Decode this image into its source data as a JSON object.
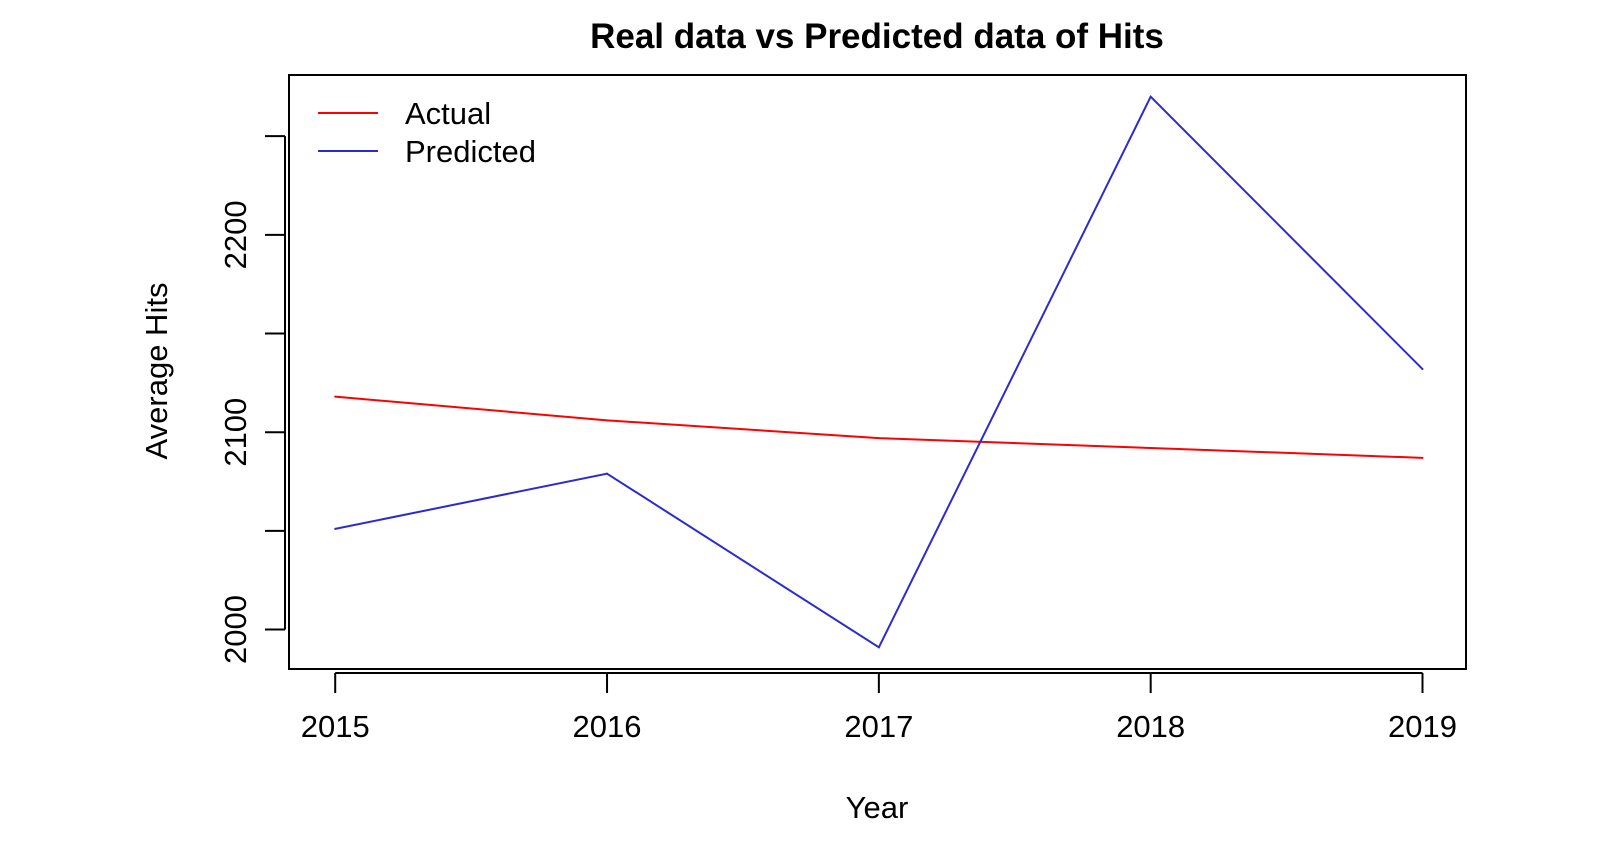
{
  "chart_data": {
    "type": "line",
    "title": "Real data vs Predicted data of Hits",
    "xlabel": "Year",
    "ylabel": "Average Hits",
    "x": [
      2015,
      2016,
      2017,
      2018,
      2019
    ],
    "x_tick_labels": [
      "2015",
      "2016",
      "2017",
      "2018",
      "2019"
    ],
    "y_ticks": [
      2000,
      2050,
      2100,
      2150,
      2200,
      2250
    ],
    "y_tick_labels": [
      "2000",
      "",
      "2100",
      "",
      "2200",
      ""
    ],
    "xlim": [
      2014.83,
      2019.16
    ],
    "ylim": [
      1980,
      2281
    ],
    "grid": false,
    "legend_position": "top-left",
    "series": [
      {
        "name": "Actual",
        "color": "#ff0000",
        "values": [
          2118,
          2106,
          2097,
          2092,
          2087
        ]
      },
      {
        "name": "Predicted",
        "color": "#2b2bd0",
        "values": [
          2051,
          2079,
          1991,
          2270,
          2132
        ]
      }
    ]
  }
}
